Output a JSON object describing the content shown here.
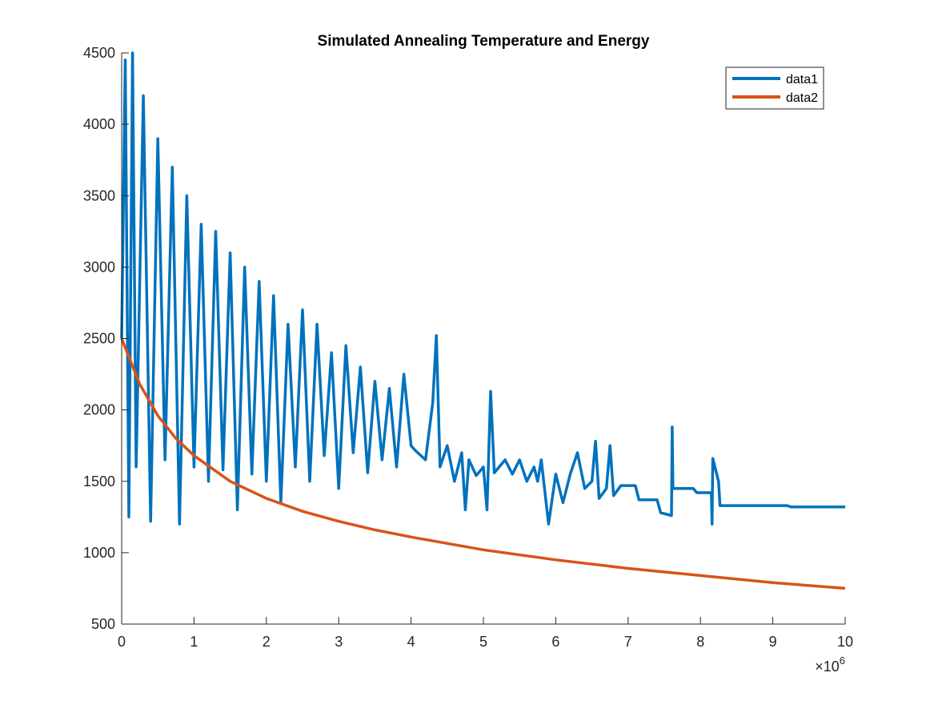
{
  "chart_data": {
    "type": "line",
    "title": "Simulated Annealing Temperature and Energy",
    "xlabel": "",
    "ylabel": "",
    "xlim": [
      0,
      10000000
    ],
    "ylim": [
      500,
      4500
    ],
    "x_exponent_label": "×10",
    "x_exponent_power": "6",
    "x_ticks": [
      0,
      1000000,
      2000000,
      3000000,
      4000000,
      5000000,
      6000000,
      7000000,
      8000000,
      9000000,
      10000000
    ],
    "x_tick_labels": [
      "0",
      "1",
      "2",
      "3",
      "4",
      "5",
      "6",
      "7",
      "8",
      "9",
      "10"
    ],
    "y_ticks": [
      500,
      1000,
      1500,
      2000,
      2500,
      3000,
      3500,
      4000,
      4500
    ],
    "y_tick_labels": [
      "500",
      "1000",
      "1500",
      "2000",
      "2500",
      "3000",
      "3500",
      "4000",
      "4500"
    ],
    "grid": false,
    "legend_position": "top-right",
    "series": [
      {
        "name": "data1",
        "color": "#0072BD",
        "points": [
          [
            0,
            2500
          ],
          [
            50000,
            4450
          ],
          [
            100000,
            1250
          ],
          [
            150000,
            4500
          ],
          [
            200000,
            1600
          ],
          [
            300000,
            4200
          ],
          [
            400000,
            1220
          ],
          [
            500000,
            3900
          ],
          [
            600000,
            1650
          ],
          [
            700000,
            3700
          ],
          [
            800000,
            1200
          ],
          [
            900000,
            3500
          ],
          [
            1000000,
            1600
          ],
          [
            1100000,
            3300
          ],
          [
            1200000,
            1500
          ],
          [
            1300000,
            3250
          ],
          [
            1400000,
            1580
          ],
          [
            1500000,
            3100
          ],
          [
            1600000,
            1300
          ],
          [
            1700000,
            3000
          ],
          [
            1800000,
            1550
          ],
          [
            1900000,
            2900
          ],
          [
            2000000,
            1500
          ],
          [
            2100000,
            2800
          ],
          [
            2200000,
            1350
          ],
          [
            2300000,
            2600
          ],
          [
            2400000,
            1600
          ],
          [
            2500000,
            2700
          ],
          [
            2600000,
            1500
          ],
          [
            2700000,
            2600
          ],
          [
            2800000,
            1680
          ],
          [
            2900000,
            2400
          ],
          [
            3000000,
            1450
          ],
          [
            3100000,
            2450
          ],
          [
            3200000,
            1700
          ],
          [
            3300000,
            2300
          ],
          [
            3400000,
            1560
          ],
          [
            3500000,
            2200
          ],
          [
            3600000,
            1650
          ],
          [
            3700000,
            2150
          ],
          [
            3800000,
            1600
          ],
          [
            3900000,
            2250
          ],
          [
            4000000,
            1750
          ],
          [
            4050000,
            1720
          ],
          [
            4200000,
            1650
          ],
          [
            4300000,
            2050
          ],
          [
            4350000,
            2520
          ],
          [
            4400000,
            1600
          ],
          [
            4500000,
            1750
          ],
          [
            4600000,
            1500
          ],
          [
            4700000,
            1700
          ],
          [
            4750000,
            1300
          ],
          [
            4800000,
            1650
          ],
          [
            4900000,
            1540
          ],
          [
            5000000,
            1600
          ],
          [
            5050000,
            1300
          ],
          [
            5100000,
            2130
          ],
          [
            5150000,
            1560
          ],
          [
            5300000,
            1650
          ],
          [
            5400000,
            1550
          ],
          [
            5500000,
            1650
          ],
          [
            5600000,
            1500
          ],
          [
            5700000,
            1600
          ],
          [
            5750000,
            1500
          ],
          [
            5800000,
            1650
          ],
          [
            5900000,
            1200
          ],
          [
            6000000,
            1550
          ],
          [
            6100000,
            1350
          ],
          [
            6200000,
            1550
          ],
          [
            6300000,
            1700
          ],
          [
            6400000,
            1450
          ],
          [
            6500000,
            1500
          ],
          [
            6550000,
            1780
          ],
          [
            6600000,
            1380
          ],
          [
            6700000,
            1450
          ],
          [
            6750000,
            1750
          ],
          [
            6800000,
            1400
          ],
          [
            6900000,
            1470
          ],
          [
            7100000,
            1470
          ],
          [
            7150000,
            1370
          ],
          [
            7400000,
            1370
          ],
          [
            7450000,
            1280
          ],
          [
            7600000,
            1260
          ],
          [
            7610000,
            1880
          ],
          [
            7620000,
            1450
          ],
          [
            7900000,
            1450
          ],
          [
            7950000,
            1420
          ],
          [
            8150000,
            1420
          ],
          [
            8160000,
            1200
          ],
          [
            8170000,
            1660
          ],
          [
            8250000,
            1500
          ],
          [
            8270000,
            1330
          ],
          [
            9200000,
            1330
          ],
          [
            9250000,
            1320
          ],
          [
            10000000,
            1320
          ]
        ]
      },
      {
        "name": "data2",
        "color": "#D95319",
        "points": [
          [
            0,
            2500
          ],
          [
            250000,
            2180
          ],
          [
            500000,
            1960
          ],
          [
            750000,
            1800
          ],
          [
            1000000,
            1680
          ],
          [
            1500000,
            1500
          ],
          [
            2000000,
            1380
          ],
          [
            2500000,
            1290
          ],
          [
            3000000,
            1220
          ],
          [
            3500000,
            1160
          ],
          [
            4000000,
            1110
          ],
          [
            5000000,
            1020
          ],
          [
            6000000,
            950
          ],
          [
            7000000,
            890
          ],
          [
            8000000,
            840
          ],
          [
            9000000,
            790
          ],
          [
            10000000,
            750
          ]
        ]
      }
    ]
  }
}
